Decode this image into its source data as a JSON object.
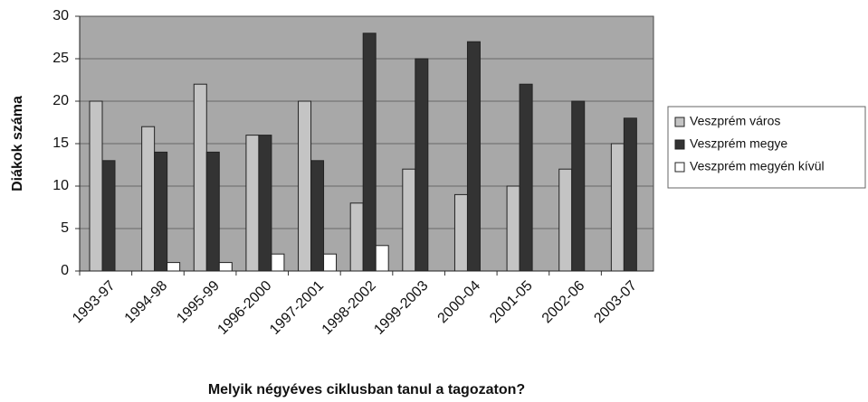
{
  "chart_data": {
    "type": "bar",
    "y_label": "Diákok száma",
    "x_label": "Melyik négyéves ciklusban tanul a tagozaton?",
    "categories": [
      "1993-97",
      "1994-98",
      "1995-99",
      "1996-2000",
      "1997-2001",
      "1998-2002",
      "1999-2003",
      "2000-04",
      "2001-05",
      "2002-06",
      "2003-07"
    ],
    "series": [
      {
        "name": "Veszprém város",
        "color": "#c4c4c4",
        "values": [
          20,
          17,
          22,
          16,
          20,
          8,
          12,
          9,
          10,
          12,
          15
        ]
      },
      {
        "name": "Veszprém megye",
        "color": "#333333",
        "values": [
          13,
          14,
          14,
          16,
          13,
          28,
          25,
          27,
          22,
          20,
          18
        ]
      },
      {
        "name": "Veszprém megyén kívül",
        "color": "#ffffff",
        "values": [
          0,
          1,
          1,
          2,
          2,
          3,
          0,
          0,
          0,
          0,
          0
        ]
      }
    ],
    "ylim": [
      0,
      30
    ],
    "yticks": [
      0,
      5,
      10,
      15,
      20,
      25,
      30
    ],
    "grid": true,
    "legend": "right"
  }
}
